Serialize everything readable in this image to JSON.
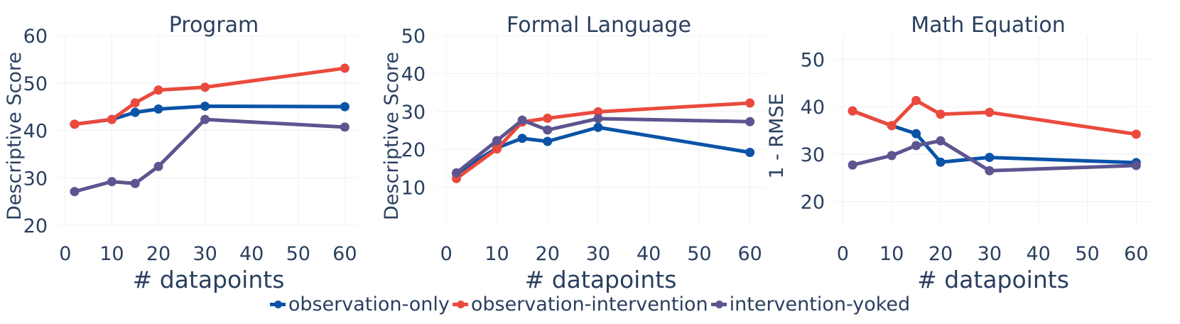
{
  "colors": {
    "observation_only": "#0a53a7",
    "observation_intervention": "#ea4a3d",
    "intervention_yoked": "#5d558f",
    "grid": "#eef0f4",
    "text": "#2a3f5f"
  },
  "legend": {
    "items": [
      {
        "label": "observation-only",
        "color": "#0a53a7"
      },
      {
        "label": "observation-intervention",
        "color": "#ea4a3d"
      },
      {
        "label": "intervention-yoked",
        "color": "#5d558f"
      }
    ]
  },
  "chart_data": [
    {
      "type": "line",
      "title": "Program",
      "xlabel": "# datapoints",
      "ylabel": "Descriptive Score",
      "xlim": [
        -1.5,
        63
      ],
      "ylim": [
        20,
        60
      ],
      "xticks": [
        0,
        10,
        20,
        30,
        40,
        50,
        60
      ],
      "yticks": [
        20,
        30,
        40,
        50,
        60
      ],
      "x": [
        2,
        10,
        15,
        20,
        30,
        60
      ],
      "series": [
        {
          "name": "observation-only",
          "color": "#0a53a7",
          "values": [
            41.3,
            42.3,
            43.8,
            44.5,
            45.1,
            45.0
          ]
        },
        {
          "name": "observation-intervention",
          "color": "#ea4a3d",
          "values": [
            41.3,
            42.3,
            45.8,
            48.5,
            49.1,
            53.1
          ]
        },
        {
          "name": "intervention-yoked",
          "color": "#5d558f",
          "values": [
            27.1,
            29.2,
            28.8,
            32.4,
            42.3,
            40.7
          ]
        }
      ]
    },
    {
      "type": "line",
      "title": "Formal Language",
      "xlabel": "# datapoints",
      "ylabel": "Descriptive Score",
      "xlim": [
        -2,
        63
      ],
      "ylim": [
        0,
        50
      ],
      "xticks": [
        0,
        10,
        20,
        30,
        40,
        50,
        60
      ],
      "yticks": [
        10,
        20,
        30,
        40,
        50
      ],
      "x": [
        2,
        10,
        15,
        20,
        30,
        60
      ],
      "series": [
        {
          "name": "observation-only",
          "color": "#0a53a7",
          "values": [
            13.6,
            20.4,
            22.9,
            22.1,
            25.8,
            19.2
          ]
        },
        {
          "name": "observation-intervention",
          "color": "#ea4a3d",
          "values": [
            12.3,
            20.1,
            27.2,
            28.2,
            29.9,
            32.2
          ]
        },
        {
          "name": "intervention-yoked",
          "color": "#5d558f",
          "values": [
            13.8,
            22.3,
            27.7,
            25.1,
            28.1,
            27.3
          ]
        }
      ]
    },
    {
      "type": "line",
      "title": "Math Equation",
      "xlabel": "# datapoints",
      "ylabel": "1 - RMSE",
      "xlim": [
        -1.5,
        63
      ],
      "ylim": [
        15,
        55
      ],
      "xticks": [
        0,
        10,
        20,
        30,
        40,
        50,
        60
      ],
      "yticks": [
        20,
        30,
        40,
        50
      ],
      "x": [
        2,
        10,
        15,
        20,
        30,
        60
      ],
      "series": [
        {
          "name": "observation-only",
          "color": "#0a53a7",
          "values": [
            39.1,
            36.0,
            34.3,
            28.3,
            29.3,
            28.2
          ]
        },
        {
          "name": "observation-intervention",
          "color": "#ea4a3d",
          "values": [
            39.1,
            36.0,
            41.3,
            38.4,
            38.8,
            34.2
          ]
        },
        {
          "name": "intervention-yoked",
          "color": "#5d558f",
          "values": [
            27.7,
            29.7,
            31.8,
            32.8,
            26.5,
            27.6
          ]
        }
      ]
    }
  ]
}
